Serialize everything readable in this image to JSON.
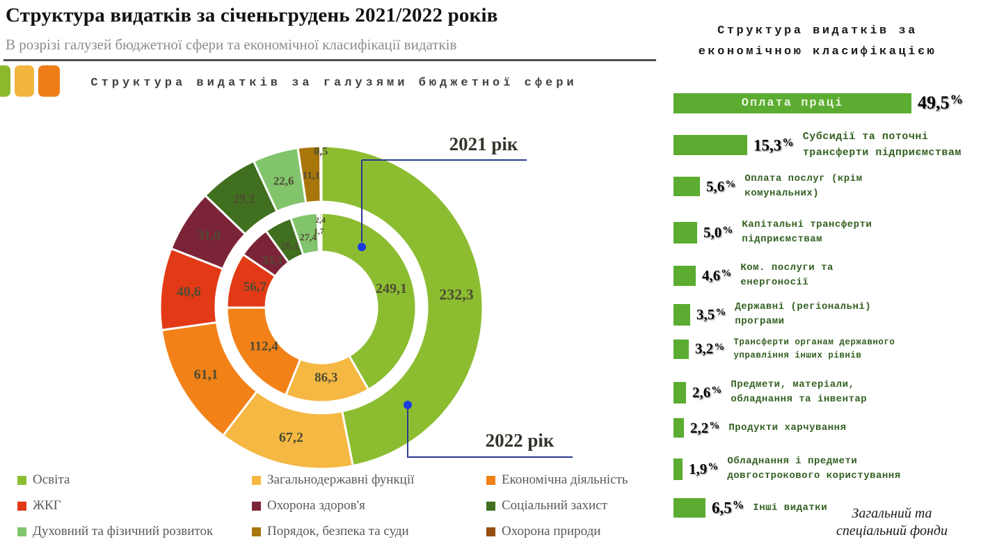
{
  "header": {
    "title": "Структура видатків за січеньгрудень 2021/2022 років",
    "subtitle": "В розрізі галузей бюджетної сфери та економічної класифікації видатків"
  },
  "decor": {
    "squares": [
      "#8CB82D",
      "#F2B53E",
      "#EE7D17"
    ]
  },
  "chart_data": [
    {
      "type": "pie",
      "subtype": "double-donut",
      "title": "Структура видатків за галузями бюджетної сфери",
      "categories": [
        "Освіта",
        "Загальнодержавні функції",
        "Економічна діяльність",
        "ЖКГ",
        "Охорона здоров'я",
        "Соціальний захист",
        "Духовний та фізичний розвиток",
        "Порядок, безпека та суди",
        "Охорона природи"
      ],
      "colors": [
        "#8CBD31",
        "#F5B843",
        "#F28118",
        "#E23A16",
        "#7C2437",
        "#40701F",
        "#82C46C",
        "#A8760B",
        "#964F0E"
      ],
      "series": [
        {
          "name": "2021 рік",
          "ring": "inner",
          "values": [
            249.1,
            86.3,
            112.4,
            56.7,
            33.1,
            28.1,
            27.4,
            1.7,
            2.4
          ],
          "labels": [
            "249,1",
            "86,3",
            "112,4",
            "56,7",
            "33,1",
            "28,1",
            "27,4",
            "1,7",
            "2,4"
          ]
        },
        {
          "name": "2022 рік",
          "ring": "outer",
          "values": [
            232.3,
            67.2,
            61.1,
            40.6,
            31.0,
            29.2,
            22.6,
            11.1,
            0.5
          ],
          "labels": [
            "232,3",
            "67,2",
            "61,1",
            "40,6",
            "31,0",
            "29,2",
            "22,6",
            "11,1",
            "0,5"
          ]
        }
      ],
      "annotations": {
        "year_labels": [
          "2021 рік",
          "2022 рік"
        ],
        "line_color": "#2B3990",
        "dot_color": "#1C3BE0"
      },
      "value_label_color": "#4d4b33"
    },
    {
      "type": "bar",
      "orientation": "horizontal",
      "title": "Структура видатків за економічною класифікацією",
      "categories": [
        "Оплата праці",
        "Субсидії та поточні трансферти підприємствам",
        "Оплата послуг (крім комунальних)",
        "Капітальні трансферти підприємствам",
        "Ком. послуги та енергоносії",
        "Державні (регіональні) програми",
        "Трансферти органам державного управління інших рівнів",
        "Предмети, матеріали, обладнання та інвентар",
        "Продукти харчування",
        "Обладнання і предмети довгострокового користування",
        "Інші видатки"
      ],
      "values": [
        49.5,
        15.3,
        5.6,
        5.0,
        4.6,
        3.5,
        3.2,
        2.6,
        2.2,
        1.9,
        6.5
      ],
      "value_labels": [
        "49,5%",
        "15,3%",
        "5,6%",
        "5,0%",
        "4,6%",
        "3,5%",
        "3,2%",
        "2,6%",
        "2,2%",
        "1,9%",
        "6,5%"
      ],
      "unit": "%",
      "bar_color": "#5BAC30",
      "note": "Загальний та спеціальний фонди"
    }
  ]
}
